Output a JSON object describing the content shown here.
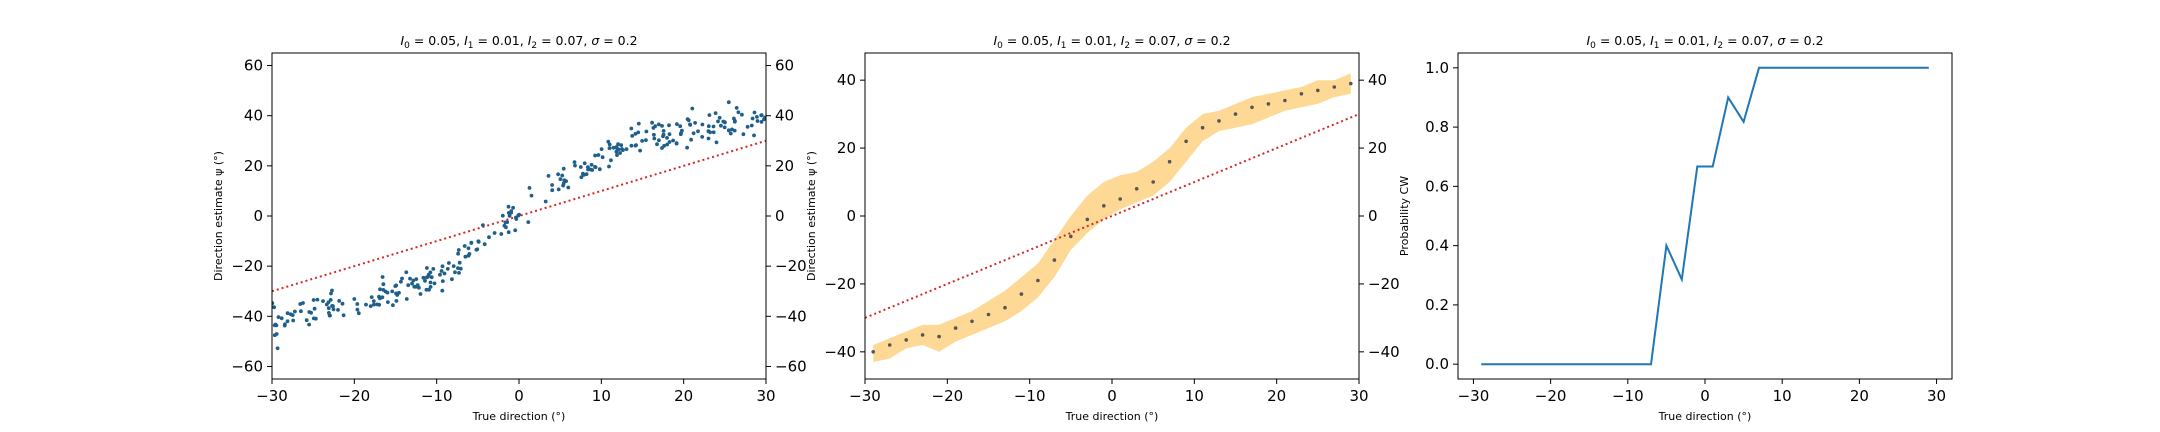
{
  "chart_data": [
    {
      "type": "scatter",
      "title": "I0=0.05, I1=0.01, I2=0.07, σ=0.2",
      "title_parts": {
        "I0": "0.05",
        "I1": "0.01",
        "I2": "0.07",
        "sigma": "0.2"
      },
      "xlabel": "True direction (°)",
      "ylabel": "Direction estimate ψ (°)",
      "xlim": [
        -30,
        30
      ],
      "ylim": [
        -65,
        65
      ],
      "xticks": [
        "−30",
        "−20",
        "−10",
        "0",
        "10",
        "20",
        "30"
      ],
      "xtick_values": [
        -30,
        -20,
        -10,
        0,
        10,
        20,
        30
      ],
      "yticks": [
        "−60",
        "−40",
        "−20",
        "0",
        "20",
        "40",
        "60"
      ],
      "ytick_values": [
        -60,
        -40,
        -20,
        0,
        20,
        40,
        60
      ],
      "right_axis_ticks": true,
      "marker_color": "#1f5f8b",
      "identity_line": {
        "x": [
          -30,
          30
        ],
        "y": [
          -30,
          30
        ],
        "color": "#d62728",
        "style": "dotted"
      },
      "trend_points": {
        "x": [
          -30,
          -25,
          -20,
          -15,
          -12,
          -9,
          -6,
          -3,
          0,
          3,
          6,
          9,
          12,
          15,
          18,
          22,
          26,
          30
        ],
        "y": [
          -43,
          -38,
          -35,
          -31,
          -27,
          -22,
          -15,
          -6,
          3,
          9,
          16,
          22,
          27,
          31,
          33,
          35,
          37,
          40
        ]
      },
      "points_per_unit_x": 5,
      "scatter_jitter_deg": 5
    },
    {
      "type": "line",
      "title": "I0=0.05, I1=0.01, I2=0.07, σ=0.2",
      "title_parts": {
        "I0": "0.05",
        "I1": "0.01",
        "I2": "0.07",
        "sigma": "0.2"
      },
      "xlabel": "True direction (°)",
      "ylabel": "Direction estimate ψ (°)",
      "xlim": [
        -30,
        30
      ],
      "ylim": [
        -48,
        48
      ],
      "xticks": [
        "−30",
        "−20",
        "−10",
        "0",
        "10",
        "20",
        "30"
      ],
      "xtick_values": [
        -30,
        -20,
        -10,
        0,
        10,
        20,
        30
      ],
      "yticks": [
        "−40",
        "−20",
        "0",
        "20",
        "40"
      ],
      "ytick_values": [
        -40,
        -20,
        0,
        20,
        40
      ],
      "right_axis_ticks": true,
      "band_color": "#fdd58a",
      "mean_color": "#555555",
      "identity_line": {
        "x": [
          -30,
          30
        ],
        "y": [
          -30,
          30
        ],
        "color": "#d62728",
        "style": "dotted"
      },
      "x": [
        -29,
        -27,
        -25,
        -23,
        -21,
        -19,
        -17,
        -15,
        -13,
        -11,
        -9,
        -7,
        -5,
        -3,
        -1,
        1,
        3,
        5,
        7,
        9,
        11,
        13,
        15,
        17,
        19,
        21,
        23,
        25,
        27,
        29
      ],
      "mean": [
        -40,
        -38,
        -36.5,
        -35,
        -35.5,
        -33,
        -31,
        -29,
        -27,
        -23,
        -19,
        -13,
        -6,
        -1,
        3,
        5,
        8,
        10,
        16,
        22,
        26,
        28,
        30,
        32,
        33,
        34,
        36,
        37,
        38,
        39
      ],
      "lower": [
        -43,
        -42,
        -39,
        -38,
        -40,
        -37,
        -35,
        -33,
        -31,
        -28,
        -24,
        -18,
        -10,
        -5,
        -1,
        2,
        4,
        6,
        10,
        16,
        22,
        25,
        26,
        27,
        29,
        31,
        32,
        33,
        35,
        36
      ],
      "upper": [
        -38,
        -36,
        -34,
        -32,
        -32,
        -30,
        -28,
        -25,
        -22,
        -18,
        -14,
        -7,
        0,
        6,
        10,
        12,
        13,
        16,
        20,
        26,
        30,
        31,
        33,
        35,
        36,
        37,
        38,
        40,
        40,
        42
      ]
    },
    {
      "type": "line",
      "title": "I0=0.05, I1=0.01, I2=0.07, σ=0.2",
      "title_parts": {
        "I0": "0.05",
        "I1": "0.01",
        "I2": "0.07",
        "sigma": "0.2"
      },
      "xlabel": "True direction (°)",
      "ylabel": "Probability CW",
      "xlim": [
        -32,
        32
      ],
      "ylim": [
        -0.05,
        1.05
      ],
      "xticks": [
        "−30",
        "−20",
        "−10",
        "0",
        "10",
        "20",
        "30"
      ],
      "xtick_values": [
        -30,
        -20,
        -10,
        0,
        10,
        20,
        30
      ],
      "yticks": [
        "0.0",
        "0.2",
        "0.4",
        "0.6",
        "0.8",
        "1.0"
      ],
      "ytick_values": [
        0,
        0.2,
        0.4,
        0.6,
        0.8,
        1.0
      ],
      "right_axis_ticks": false,
      "line_color": "#1f77b4",
      "x": [
        -29,
        -27,
        -25,
        -23,
        -21,
        -19,
        -17,
        -15,
        -13,
        -11,
        -9,
        -7,
        -5,
        -3,
        -1,
        1,
        3,
        5,
        7,
        9,
        11,
        13,
        15,
        17,
        19,
        21,
        23,
        25,
        27,
        29
      ],
      "y": [
        0,
        0,
        0,
        0,
        0,
        0,
        0,
        0,
        0,
        0,
        0,
        0,
        0.4,
        0.286,
        0.667,
        0.667,
        0.9,
        0.818,
        1,
        1,
        1,
        1,
        1,
        1,
        1,
        1,
        1,
        1,
        1,
        1
      ]
    }
  ]
}
